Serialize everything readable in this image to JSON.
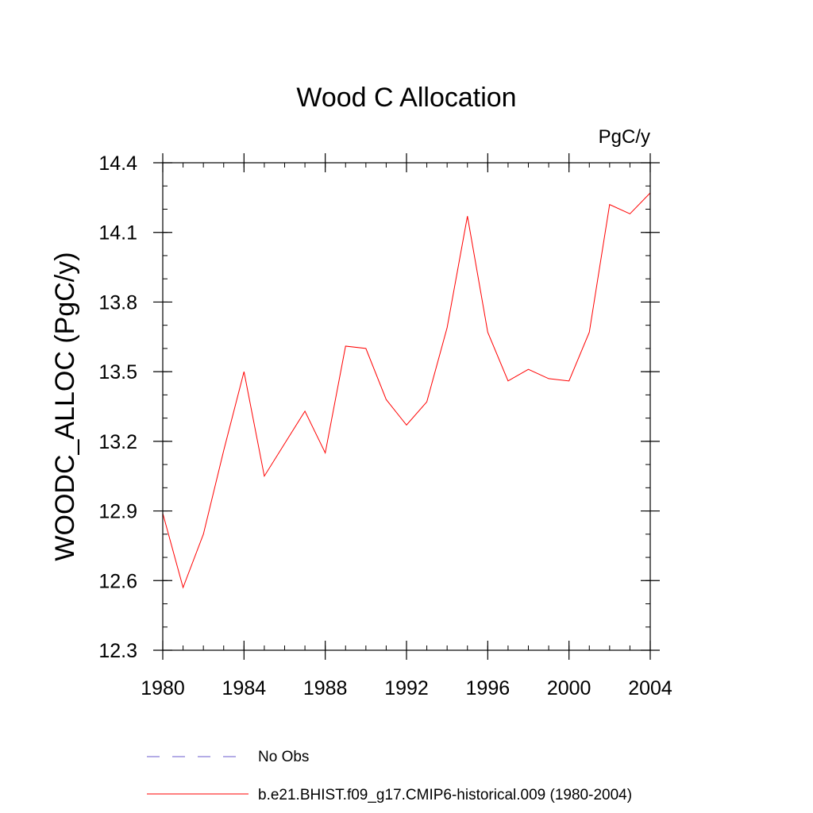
{
  "chart_data": {
    "type": "line",
    "title": "Wood C Allocation",
    "units_label": "PgC/y",
    "xlabel": "",
    "ylabel": "WOODC_ALLOC  (PgC/y)",
    "xlim": [
      1980,
      2004
    ],
    "ylim": [
      12.3,
      14.4
    ],
    "x_ticks": [
      1980,
      1984,
      1988,
      1992,
      1996,
      2000,
      2004
    ],
    "y_ticks": [
      12.3,
      12.6,
      12.9,
      13.2,
      13.5,
      13.8,
      14.1,
      14.4
    ],
    "y_minor_step": 0.1,
    "x_minor_step": 1,
    "grid": false,
    "series": [
      {
        "name": "b.e21.BHIST.f09_g17.CMIP6-historical.009 (1980-2004)",
        "color": "#ff0000",
        "style": "solid",
        "x": [
          1980,
          1981,
          1982,
          1983,
          1984,
          1985,
          1986,
          1987,
          1988,
          1989,
          1990,
          1991,
          1992,
          1993,
          1994,
          1995,
          1996,
          1997,
          1998,
          1999,
          2000,
          2001,
          2002,
          2003,
          2004
        ],
        "values": [
          12.89,
          12.57,
          12.8,
          13.16,
          13.5,
          13.05,
          13.19,
          13.33,
          13.15,
          13.61,
          13.6,
          13.38,
          13.27,
          13.37,
          13.69,
          14.17,
          13.67,
          13.46,
          13.51,
          13.47,
          13.46,
          13.67,
          14.22,
          14.18,
          14.27
        ]
      }
    ],
    "legend": [
      {
        "label": "No Obs",
        "color": "#6a5acd",
        "style": "dashed"
      },
      {
        "label": "b.e21.BHIST.f09_g17.CMIP6-historical.009 (1980-2004)",
        "color": "#ff0000",
        "style": "solid"
      }
    ]
  }
}
